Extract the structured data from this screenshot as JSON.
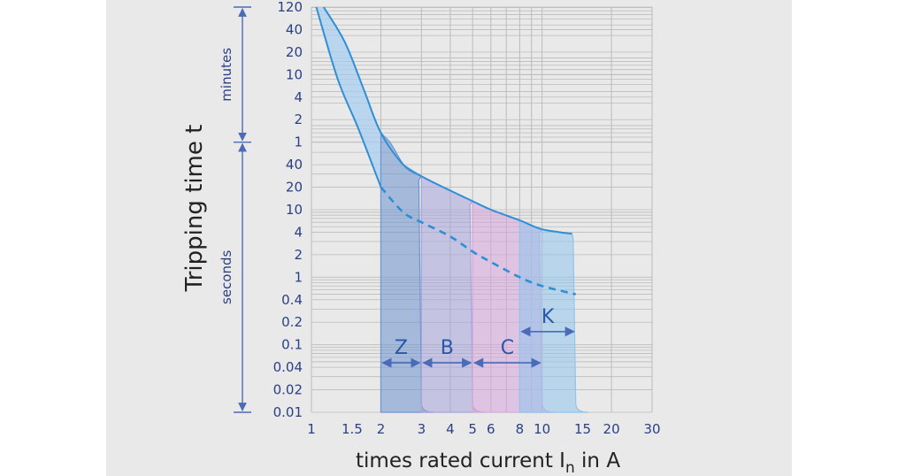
{
  "chart_data": {
    "type": "line",
    "title": "",
    "ylabel": "Tripping time t",
    "xlabel": "times rated current I",
    "xlabel_sub": "n",
    "xlabel_suffix": " in A",
    "x_scale": "log",
    "xlim": [
      1,
      30
    ],
    "x_ticks": [
      {
        "value": 1,
        "label": "1"
      },
      {
        "value": 1.5,
        "label": "1.5"
      },
      {
        "value": 2,
        "label": "2"
      },
      {
        "value": 3,
        "label": "3"
      },
      {
        "value": 4,
        "label": "4"
      },
      {
        "value": 5,
        "label": "5"
      },
      {
        "value": 6,
        "label": "6"
      },
      {
        "value": 8,
        "label": "8"
      },
      {
        "value": 10,
        "label": "10"
      },
      {
        "value": 15,
        "label": "15"
      },
      {
        "value": 20,
        "label": "20"
      },
      {
        "value": 30,
        "label": "30"
      }
    ],
    "y_scale": "log",
    "y_unit_note": "y values expressed in seconds; the axis is labelled in minutes above 1 min and seconds below",
    "ylim_seconds": [
      0.01,
      7200
    ],
    "y_ticks": [
      {
        "seconds": 7200,
        "label": "120"
      },
      {
        "seconds": 2400,
        "label": "40"
      },
      {
        "seconds": 1200,
        "label": "20"
      },
      {
        "seconds": 600,
        "label": "10"
      },
      {
        "seconds": 240,
        "label": "4"
      },
      {
        "seconds": 120,
        "label": "2"
      },
      {
        "seconds": 60,
        "label": "1"
      },
      {
        "seconds": 40,
        "label": "40"
      },
      {
        "seconds": 20,
        "label": "20"
      },
      {
        "seconds": 10,
        "label": "10"
      },
      {
        "seconds": 4,
        "label": "4"
      },
      {
        "seconds": 2,
        "label": "2"
      },
      {
        "seconds": 1,
        "label": "1"
      },
      {
        "seconds": 0.4,
        "label": "0.4"
      },
      {
        "seconds": 0.2,
        "label": "0.2"
      },
      {
        "seconds": 0.1,
        "label": "0.1"
      },
      {
        "seconds": 0.04,
        "label": "0.04"
      },
      {
        "seconds": 0.02,
        "label": "0.02"
      },
      {
        "seconds": 0.01,
        "label": "0.01"
      }
    ],
    "y_ranges": [
      {
        "label": "minutes",
        "from_seconds": 7200,
        "to_seconds": 60
      },
      {
        "label": "seconds",
        "from_seconds": 60,
        "to_seconds": 0.01
      }
    ],
    "grid": true,
    "upper_curve": {
      "name": "upper limit",
      "points": [
        [
          1.13,
          7200
        ],
        [
          1.4,
          1600
        ],
        [
          1.7,
          300
        ],
        [
          2.0,
          80
        ],
        [
          2.5,
          40
        ],
        [
          3.0,
          28
        ],
        [
          4.0,
          18
        ],
        [
          5.0,
          13
        ],
        [
          6.0,
          10
        ],
        [
          8.0,
          6.5
        ],
        [
          10.0,
          4.5
        ],
        [
          13.5,
          3.8
        ]
      ]
    },
    "lower_curve": {
      "name": "lower limit",
      "style": "solid then dashed",
      "points": [
        [
          1.05,
          7200
        ],
        [
          1.3,
          500
        ],
        [
          1.6,
          90
        ],
        [
          2.0,
          20
        ],
        [
          2.5,
          9
        ],
        [
          3.0,
          6
        ],
        [
          4.0,
          3.5
        ],
        [
          5.0,
          2.2
        ],
        [
          6.0,
          1.6
        ],
        [
          8.0,
          1.0
        ],
        [
          10.0,
          0.7
        ],
        [
          14.0,
          0.5
        ]
      ]
    },
    "bands": [
      {
        "name": "Z",
        "from": 2,
        "to": 3,
        "color": "#6d94d0"
      },
      {
        "name": "B",
        "from": 3,
        "to": 5,
        "color": "#a8a4dc"
      },
      {
        "name": "C",
        "from": 5,
        "to": 10,
        "color": "#d6a6dc"
      },
      {
        "name": "K",
        "from": 8,
        "to": 14,
        "color": "#8fc4ec"
      }
    ],
    "colors": {
      "curve": "#2f8fd6",
      "arrow": "#4a6bb8",
      "grid": "#bbbbbb",
      "envelope": "#a9cdef"
    }
  }
}
